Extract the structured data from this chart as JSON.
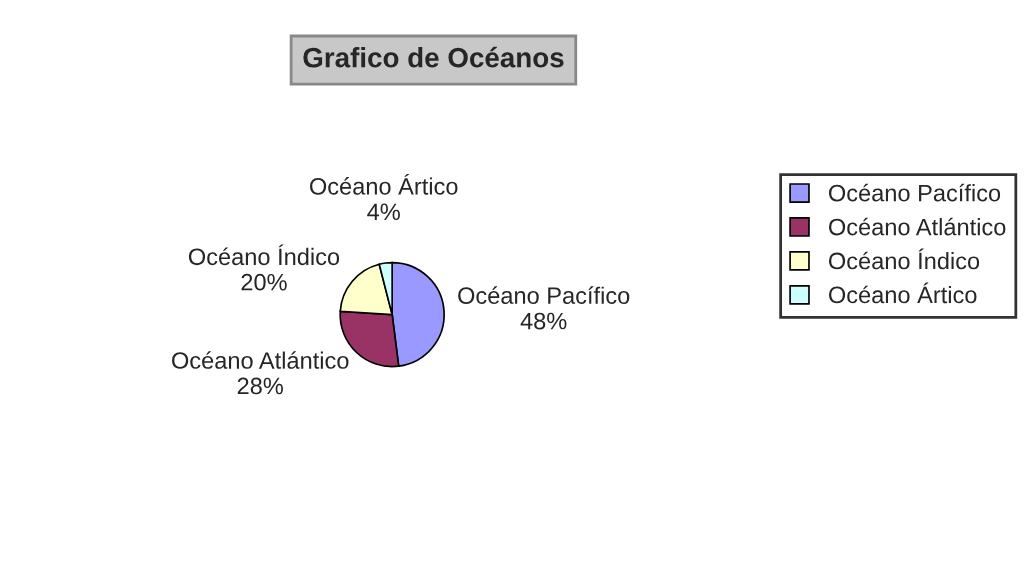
{
  "chart_data": {
    "type": "pie",
    "title": "Grafico de Océanos",
    "categories": [
      "Océano Pacífico",
      "Océano Atlántico",
      "Océano Índico",
      "Océano Ártico"
    ],
    "values": [
      48,
      28,
      20,
      4
    ],
    "value_labels": [
      "48%",
      "28%",
      "20%",
      "4%"
    ],
    "colors": [
      "#9999ff",
      "#993366",
      "#ffffcc",
      "#ccffff"
    ],
    "legend": "right"
  }
}
